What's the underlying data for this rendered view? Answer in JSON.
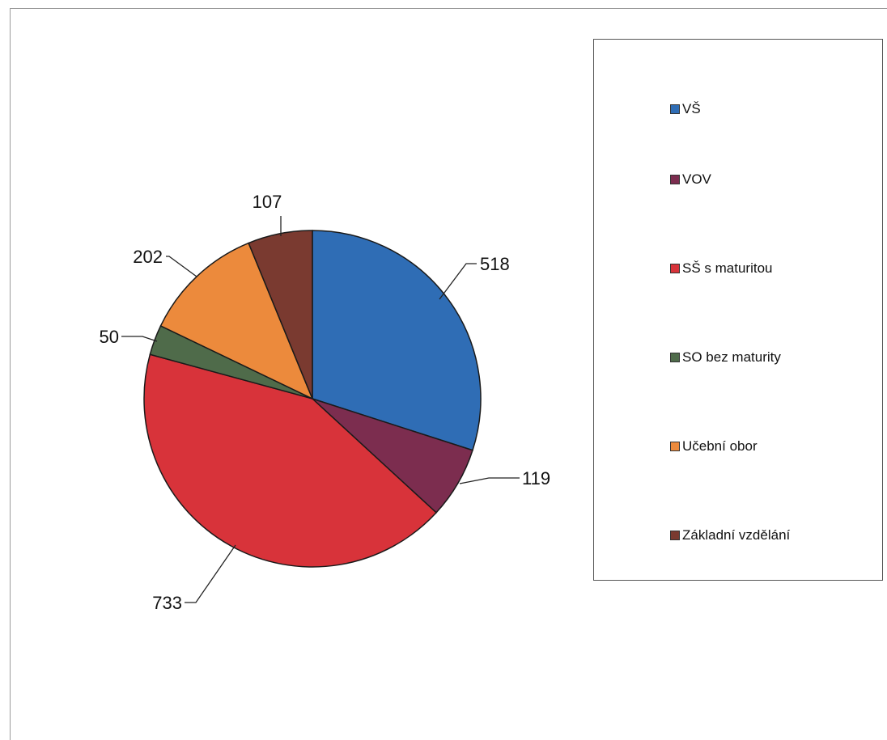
{
  "chart_data": {
    "type": "pie",
    "categories": [
      "VŠ",
      "VOV",
      "SŠ s maturitou",
      "SO bez maturity",
      "Učební obor",
      "Základní vzdělání"
    ],
    "values": [
      518,
      119,
      733,
      50,
      202,
      107
    ],
    "colors": [
      "#2f6db5",
      "#7c2d4f",
      "#d8333a",
      "#4f6b4a",
      "#ec8a3c",
      "#7a3a30"
    ],
    "data_labels": [
      "518",
      "119",
      "733",
      "50",
      "202",
      "107"
    ],
    "legend_position": "right",
    "start_angle": "12 o'clock",
    "direction": "clockwise"
  },
  "legend": {
    "items": [
      {
        "label": "VŠ",
        "color": "#2f6db5"
      },
      {
        "label": "VOV",
        "color": "#7c2d4f"
      },
      {
        "label": "SŠ s maturitou",
        "color": "#d8333a"
      },
      {
        "label": "SO bez maturity",
        "color": "#4f6b4a"
      },
      {
        "label": "Učební obor",
        "color": "#ec8a3c"
      },
      {
        "label": "Základní vzdělání",
        "color": "#7a3a30"
      }
    ]
  }
}
